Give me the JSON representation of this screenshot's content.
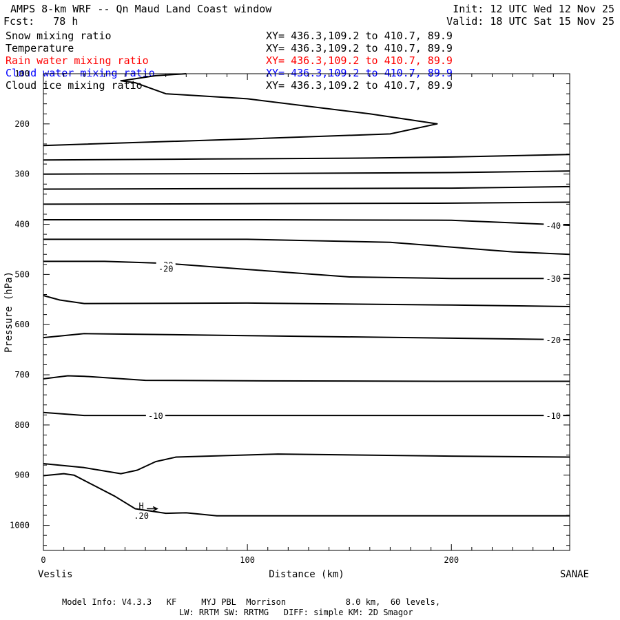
{
  "header": {
    "title": "AMPS 8-km WRF -- Qn Maud Land Coast window",
    "forecast": "Fcst:   78 h",
    "init": "Init: 12 UTC Wed 12 Nov 25",
    "valid": "Valid: 18 UTC Sat 15 Nov 25"
  },
  "legend": [
    {
      "label": "Snow mixing ratio",
      "xy": "XY= 436.3,109.2 to 410.7, 89.9",
      "color": "#000000"
    },
    {
      "label": "Temperature",
      "xy": "XY= 436.3,109.2 to 410.7, 89.9",
      "color": "#000000"
    },
    {
      "label": "Rain water mixing ratio",
      "xy": "XY= 436.3,109.2 to 410.7, 89.9",
      "color": "#ff0000"
    },
    {
      "label": "Cloud water mixing ratio",
      "xy": "XY= 436.3,109.2 to 410.7, 89.9",
      "color": "#0000ff"
    },
    {
      "label": "Cloud ice mixing ratio",
      "xy": "XY= 436.3,109.2 to 410.7, 89.9",
      "color": "#000000"
    }
  ],
  "footer": {
    "line1": "Model Info: V4.3.3   KF     MYJ PBL  Morrison            8.0 km,  60 levels,",
    "line2": "LW: RRTM SW: RRTMG   DIFF: simple KM: 2D Smagor"
  },
  "chart_data": {
    "type": "line",
    "xlabel": "Distance (km)",
    "ylabel": "Pressure (hPa)",
    "xlim": [
      0,
      258
    ],
    "ylim": [
      1050,
      100
    ],
    "x_ticks": [
      0,
      100,
      200
    ],
    "y_ticks": [
      100,
      200,
      300,
      400,
      500,
      600,
      700,
      800,
      900,
      1000
    ],
    "endpoint_left": "Veslis",
    "endpoint_right": "SANAE",
    "contours": [
      {
        "points": [
          [
            70,
            100
          ],
          [
            55,
            104
          ],
          [
            40,
            113
          ],
          [
            38,
            114
          ],
          [
            45,
            118
          ],
          [
            60,
            140
          ],
          [
            100,
            150
          ],
          [
            160,
            180
          ],
          [
            193,
            200
          ],
          [
            170,
            220
          ],
          [
            100,
            230
          ],
          [
            0,
            243
          ]
        ]
      },
      {
        "points": [
          [
            0,
            272
          ],
          [
            80,
            270
          ],
          [
            160,
            268
          ],
          [
            200,
            266
          ],
          [
            258,
            261
          ]
        ]
      },
      {
        "points": [
          [
            0,
            300
          ],
          [
            100,
            299
          ],
          [
            200,
            297
          ],
          [
            258,
            294
          ]
        ]
      },
      {
        "points": [
          [
            0,
            330
          ],
          [
            100,
            329
          ],
          [
            200,
            328
          ],
          [
            258,
            325
          ]
        ]
      },
      {
        "points": [
          [
            0,
            360
          ],
          [
            100,
            359
          ],
          [
            200,
            358
          ],
          [
            258,
            356
          ]
        ]
      },
      {
        "points": [
          [
            0,
            391
          ],
          [
            100,
            391
          ],
          [
            200,
            392
          ],
          [
            258,
            402
          ]
        ]
      },
      {
        "points": [
          [
            0,
            430
          ],
          [
            100,
            430
          ],
          [
            170,
            436
          ],
          [
            230,
            455
          ],
          [
            258,
            460
          ]
        ]
      },
      {
        "points": [
          [
            0,
            474
          ],
          [
            30,
            474
          ],
          [
            60,
            478
          ],
          [
            100,
            490
          ],
          [
            150,
            505
          ],
          [
            200,
            508
          ],
          [
            258,
            508
          ]
        ]
      },
      {
        "points": [
          [
            0,
            542
          ],
          [
            8,
            551
          ],
          [
            20,
            558
          ],
          [
            100,
            557
          ],
          [
            200,
            561
          ],
          [
            258,
            564
          ]
        ]
      },
      {
        "points": [
          [
            0,
            626
          ],
          [
            20,
            618
          ],
          [
            100,
            622
          ],
          [
            200,
            627
          ],
          [
            258,
            630
          ]
        ]
      },
      {
        "points": [
          [
            0,
            708
          ],
          [
            12,
            702
          ],
          [
            20,
            703
          ],
          [
            50,
            711
          ],
          [
            100,
            712
          ],
          [
            200,
            713
          ],
          [
            258,
            713
          ]
        ]
      },
      {
        "points": [
          [
            0,
            775
          ],
          [
            20,
            781
          ],
          [
            100,
            781
          ],
          [
            200,
            781
          ],
          [
            258,
            781
          ]
        ]
      },
      {
        "points": [
          [
            0,
            877
          ],
          [
            20,
            885
          ],
          [
            38,
            897
          ],
          [
            46,
            890
          ],
          [
            55,
            873
          ],
          [
            65,
            864
          ],
          [
            115,
            858
          ],
          [
            200,
            862
          ],
          [
            258,
            864
          ]
        ]
      },
      {
        "points": [
          [
            0,
            901
          ],
          [
            10,
            897
          ],
          [
            15,
            900
          ],
          [
            25,
            921
          ],
          [
            35,
            942
          ],
          [
            45,
            967
          ],
          [
            60,
            976
          ],
          [
            70,
            975
          ],
          [
            85,
            981
          ],
          [
            100,
            981
          ],
          [
            200,
            981
          ],
          [
            258,
            981
          ]
        ]
      }
    ],
    "contour_labels": [
      {
        "text": "-40",
        "x": 250,
        "p": 402
      },
      {
        "text": "-30",
        "x": 60,
        "p": 480
      },
      {
        "text": "-30",
        "x": 250,
        "p": 508
      },
      {
        "text": "-20",
        "x": 60,
        "p": 488
      },
      {
        "text": "-20",
        "x": 250,
        "p": 630
      },
      {
        "text": "-10",
        "x": 55,
        "p": 781
      },
      {
        "text": "-10",
        "x": 250,
        "p": 781
      }
    ],
    "annotations": [
      {
        "text": "H",
        "x": 48,
        "p": 960
      },
      {
        "text": ".20",
        "x": 48,
        "p": 980
      }
    ]
  }
}
